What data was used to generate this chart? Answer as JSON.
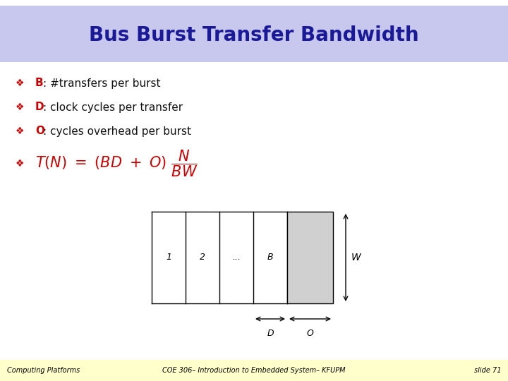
{
  "title": "Bus Burst Transfer Bandwidth",
  "title_bg": "#c8c8ee",
  "title_color": "#1a1a99",
  "title_fontsize": 20,
  "bg_color": "#ffffff",
  "footer_bg": "#ffffcc",
  "bullet_color": "#cc0000",
  "bullet_symbol": "❖",
  "bullet_items": [
    [
      "B",
      ": #transfers per burst"
    ],
    [
      "D",
      ": clock cycles per transfer"
    ],
    [
      "O",
      ": cycles overhead per burst"
    ]
  ],
  "formula_color": "#cc0000",
  "footer_left": "Computing Platforms",
  "footer_center": "COE 306– Introduction to Embedded System– KFUPM",
  "footer_right": "slide 71",
  "footer_fontsize": 7,
  "footer_color": "#000000",
  "text_color": "#111111"
}
